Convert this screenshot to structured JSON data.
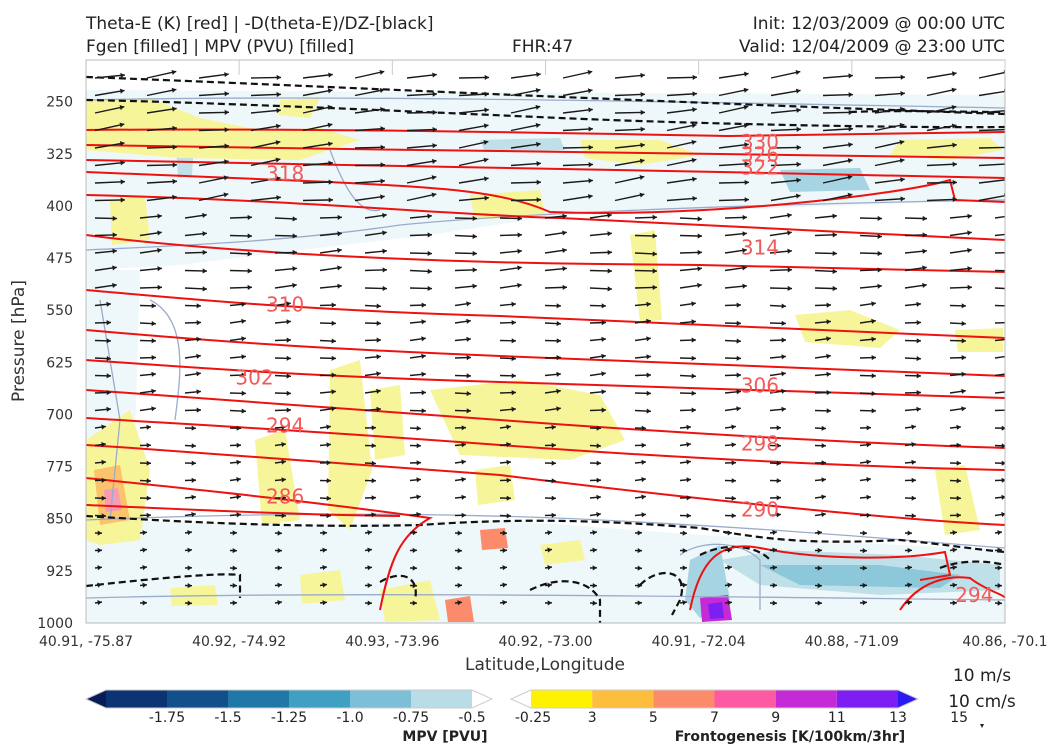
{
  "header": {
    "line1_left": "Theta-E (K) [red] | -D(theta-E)/DZ-[black]",
    "line2_left": "Fgen [filled] | MPV (PVU) [filled]",
    "line2_center": "FHR:47",
    "line1_right": "Init: 12/03/2009 @ 00:00 UTC",
    "line2_right": "Valid: 12/04/2009 @ 23:00 UTC"
  },
  "chart_data": {
    "type": "cross-section",
    "xlabel": "Latitude,Longitude",
    "ylabel": "Pressure [hPa]",
    "x_ticks": [
      "40.91, -75.87",
      "40.92, -74.92",
      "40.93, -73.96",
      "40.92, -73.00",
      "40.91, -72.04",
      "40.88, -71.09",
      "40.86, -70.1"
    ],
    "y_ticks": [
      250,
      325,
      400,
      475,
      550,
      625,
      700,
      775,
      850,
      925,
      1000
    ],
    "ylim": [
      1000,
      190
    ],
    "theta_e_labels": [
      {
        "value": "330",
        "x_index": 4.4,
        "p": 308
      },
      {
        "value": "326",
        "x_index": 4.4,
        "p": 326
      },
      {
        "value": "322",
        "x_index": 4.4,
        "p": 345
      },
      {
        "value": "318",
        "x_index": 1.3,
        "p": 353
      },
      {
        "value": "314",
        "x_index": 4.4,
        "p": 460
      },
      {
        "value": "310",
        "x_index": 1.3,
        "p": 542
      },
      {
        "value": "306",
        "x_index": 4.4,
        "p": 658
      },
      {
        "value": "302",
        "x_index": 1.1,
        "p": 647
      },
      {
        "value": "298",
        "x_index": 4.4,
        "p": 742
      },
      {
        "value": "294",
        "x_index": 1.3,
        "p": 716
      },
      {
        "value": "290",
        "x_index": 4.4,
        "p": 837
      },
      {
        "value": "286",
        "x_index": 1.3,
        "p": 818
      },
      {
        "value": "294",
        "x_index": 5.8,
        "p": 960
      }
    ]
  },
  "colorbars": {
    "mpv": {
      "title": "MPV [PVU]",
      "ticks": [
        "-1.75",
        "-1.5",
        "-1.25",
        "-1.0",
        "-0.75",
        "-0.5",
        "-0.25"
      ],
      "colors": [
        "#081d58",
        "#0c3473",
        "#12508c",
        "#1f78a5",
        "#3fa0c3",
        "#7dbfd6",
        "#b9dde6",
        "#ffffff"
      ]
    },
    "fgen": {
      "title": "Frontogenesis [K/100km/3hr]",
      "ticks": [
        "3",
        "5",
        "7",
        "9",
        "11",
        "13",
        "15"
      ],
      "colors": [
        "#ffffff",
        "#fff200",
        "#fdbd3d",
        "#fb8b6a",
        "#fc5aa2",
        "#c42bd6",
        "#7d1ef2",
        "#2a1af6"
      ]
    }
  },
  "quiver_key": {
    "line1": "10 m/s",
    "line2": "10 cm/s"
  }
}
